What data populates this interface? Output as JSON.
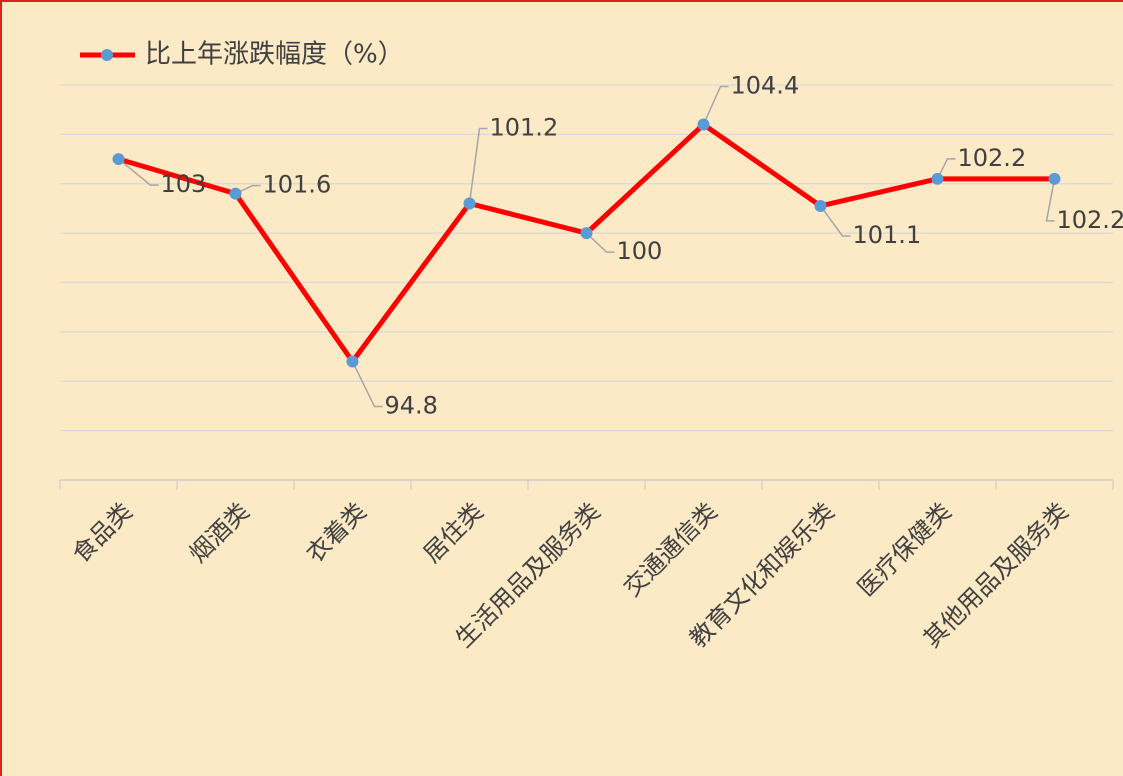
{
  "chart_data": {
    "type": "line",
    "categories": [
      "食品类",
      "烟酒类",
      "衣着类",
      "居住类",
      "生活用品及服务类",
      "交通通信类",
      "教育文化和娱乐类",
      "医疗保健类",
      "其他用品及服务类"
    ],
    "series": [
      {
        "name": "比上年涨跌幅度（%）",
        "color": "#ff0000",
        "marker_color": "#5b9bd5",
        "values": [
          103,
          101.6,
          94.8,
          101.2,
          100,
          104.4,
          101.1,
          102.2,
          102.2
        ]
      }
    ],
    "ylim": [
      90,
      106
    ],
    "yticks": [
      90,
      92,
      94,
      96,
      98,
      100,
      102,
      104,
      106
    ],
    "grid": true,
    "legend": "top-left"
  }
}
